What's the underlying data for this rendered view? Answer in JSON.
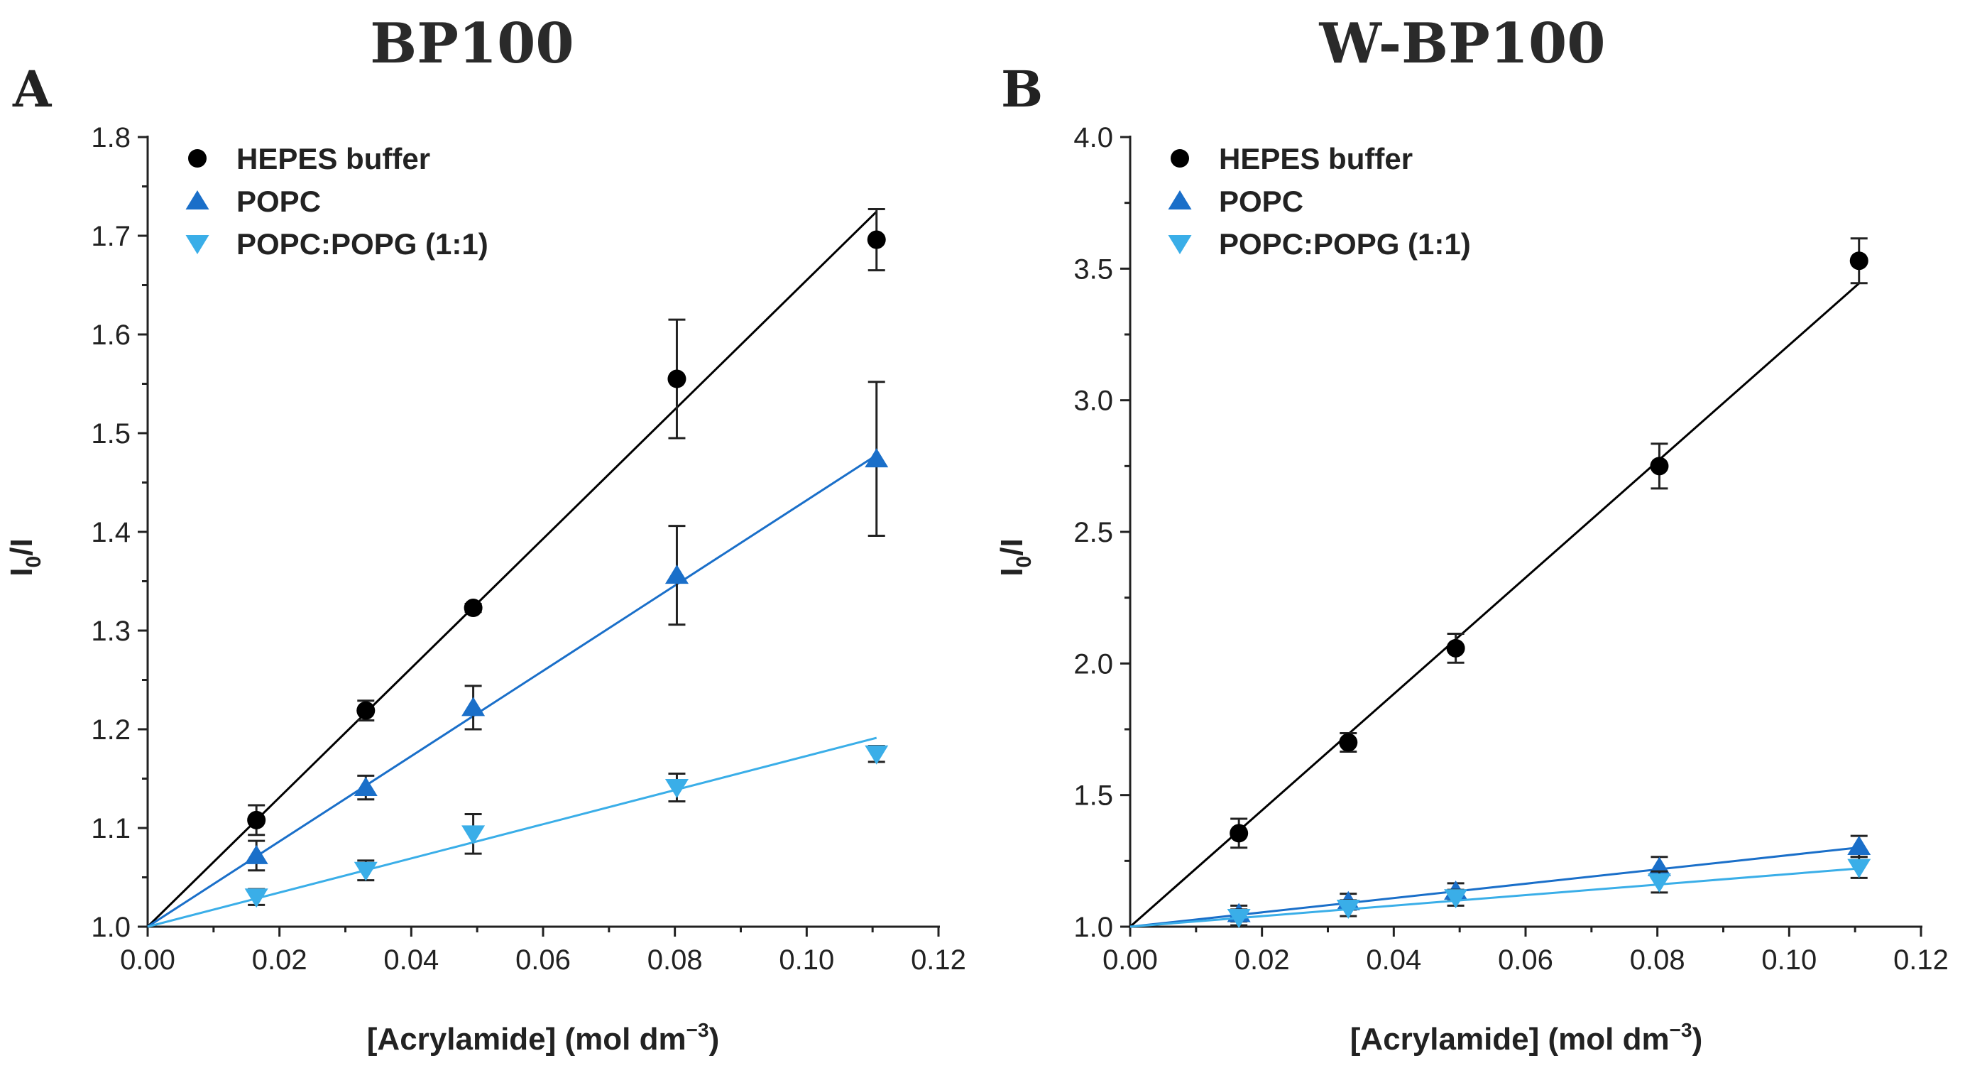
{
  "chart_data": [
    {
      "type": "scatter",
      "panel_letter": "A",
      "title": "BP100",
      "xlabel_text": "[Acrylamide] (mol dm",
      "xlabel_sup": "−3",
      "xlabel_close": ")",
      "ylabel_main": "I",
      "ylabel_sub": "0",
      "ylabel_rest": "/I",
      "xlim": [
        0,
        0.12
      ],
      "ylim": [
        1.0,
        1.8
      ],
      "xticks": [
        "0.00",
        "0.02",
        "0.04",
        "0.06",
        "0.08",
        "0.10",
        "0.12"
      ],
      "yticks": [
        "1.0",
        "1.1",
        "1.2",
        "1.3",
        "1.4",
        "1.5",
        "1.6",
        "1.7",
        "1.8"
      ],
      "series": [
        {
          "name": "HEPES buffer",
          "marker": "circle",
          "color": "#000000",
          "x": [
            0.0165,
            0.0331,
            0.0494,
            0.0803,
            0.1106
          ],
          "y": [
            1.108,
            1.219,
            1.323,
            1.555,
            1.696
          ],
          "err": [
            0.015,
            0.01,
            0.004,
            0.06,
            0.031
          ],
          "fit_slope": 6.55
        },
        {
          "name": "POPC",
          "marker": "triangle-up",
          "color": "#1a6fc9",
          "x": [
            0.0165,
            0.0331,
            0.0494,
            0.0803,
            0.1106
          ],
          "y": [
            1.072,
            1.141,
            1.222,
            1.356,
            1.474
          ],
          "err": [
            0.015,
            0.012,
            0.022,
            0.05,
            0.078
          ],
          "fit_slope": 4.32
        },
        {
          "name": "POPC:POPG (1:1)",
          "marker": "triangle-down",
          "color": "#3aaee8",
          "x": [
            0.0165,
            0.0331,
            0.0494,
            0.0803,
            0.1106
          ],
          "y": [
            1.03,
            1.057,
            1.094,
            1.141,
            1.175
          ],
          "err": [
            0.008,
            0.01,
            0.02,
            0.014,
            0.008
          ],
          "fit_slope": 1.73
        }
      ]
    },
    {
      "type": "scatter",
      "panel_letter": "B",
      "title": "W-BP100",
      "xlabel_text": "[Acrylamide] (mol dm",
      "xlabel_sup": "−3",
      "xlabel_close": ")",
      "ylabel_main": "I",
      "ylabel_sub": "0",
      "ylabel_rest": "/I",
      "xlim": [
        0,
        0.12
      ],
      "ylim": [
        1.0,
        4.0
      ],
      "xticks": [
        "0.00",
        "0.02",
        "0.04",
        "0.06",
        "0.08",
        "0.10",
        "0.12"
      ],
      "yticks": [
        "1.0",
        "1.5",
        "2.0",
        "2.5",
        "3.0",
        "3.5",
        "4.0"
      ],
      "series": [
        {
          "name": "HEPES buffer",
          "marker": "circle",
          "color": "#000000",
          "x": [
            0.0165,
            0.0331,
            0.0494,
            0.0803,
            0.1106
          ],
          "y": [
            1.355,
            1.7,
            2.058,
            2.75,
            3.53
          ],
          "err": [
            0.055,
            0.035,
            0.055,
            0.085,
            0.085
          ],
          "fit_slope": 22.1
        },
        {
          "name": "POPC",
          "marker": "triangle-up",
          "color": "#1a6fc9",
          "x": [
            0.0165,
            0.0331,
            0.0494,
            0.0803,
            0.1106
          ],
          "y": [
            1.05,
            1.095,
            1.135,
            1.225,
            1.305
          ],
          "err": [
            0.03,
            0.03,
            0.03,
            0.04,
            0.04
          ],
          "fit_slope": 2.72
        },
        {
          "name": "POPC:POPG (1:1)",
          "marker": "triangle-down",
          "color": "#3aaee8",
          "x": [
            0.0165,
            0.0331,
            0.0494,
            0.0803,
            0.1106
          ],
          "y": [
            1.035,
            1.07,
            1.11,
            1.17,
            1.225
          ],
          "err": [
            0.03,
            0.03,
            0.03,
            0.04,
            0.04
          ],
          "fit_slope": 2.0
        }
      ]
    }
  ]
}
